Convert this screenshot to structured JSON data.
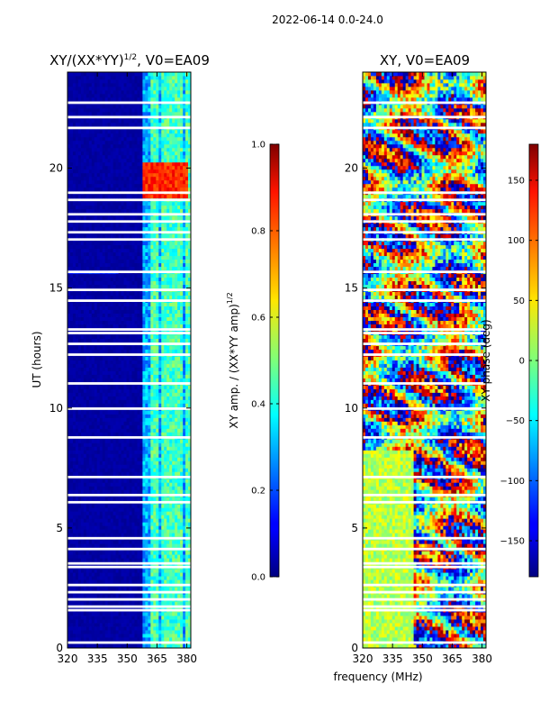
{
  "suptitle": "2022-06-14 0.0-24.0",
  "colors": {
    "background": "#ffffff",
    "waterfall_deep": "#00007f",
    "flag_gap": "#ffffff"
  },
  "chart_data": [
    {
      "type": "heatmap",
      "title": "XY/(XX*YY)^1/2, V0=EA09",
      "title_main": "XY/(XX*YY)",
      "title_sup": "1/2",
      "title_rest": ", V0=EA09",
      "xlabel": "",
      "ylabel": "UT (hours)",
      "xlim": [
        320,
        382
      ],
      "ylim": [
        0,
        24
      ],
      "xticks": [
        320,
        335,
        350,
        365,
        380
      ],
      "xtick_labels": [
        "320",
        "335",
        "350",
        "365",
        "380"
      ],
      "yticks": [
        0,
        5,
        10,
        15,
        20
      ],
      "ytick_labels": [
        "0",
        "5",
        "10",
        "15",
        "20"
      ],
      "colormap": "jet",
      "description_of_values": "mostly near 0 (dark blue); higher values (0.2-0.5) in 358-382 MHz; hot spot ~0.8-0.9 near 19-20 h, 358-380 MHz",
      "colorbar": {
        "label_main": "XY amp. / (XX*YY amp)",
        "label_sup": "1/2",
        "range": [
          0.0,
          1.0
        ],
        "ticks": [
          0.0,
          0.2,
          0.4,
          0.6,
          0.8,
          1.0
        ],
        "tick_labels": [
          "0.0",
          "0.2",
          "0.4",
          "0.6",
          "0.8",
          "1.0"
        ]
      }
    },
    {
      "type": "heatmap",
      "title": "XY, V0=EA09",
      "xlabel": "frequency (MHz)",
      "ylabel": "",
      "xlim": [
        320,
        382
      ],
      "ylim": [
        0,
        24
      ],
      "xticks": [
        320,
        335,
        350,
        365,
        380
      ],
      "xtick_labels": [
        "320",
        "335",
        "350",
        "365",
        "380"
      ],
      "yticks": [
        0,
        5,
        10,
        15,
        20
      ],
      "ytick_labels": [
        "0",
        "5",
        "10",
        "15",
        "20"
      ],
      "colormap": "jet",
      "description_of_values": "phase values spanning -180 to 180 deg, wrapping, noisy",
      "colorbar": {
        "label": "XY phase (deg)",
        "range": [
          -180,
          180
        ],
        "ticks": [
          -150,
          -100,
          -50,
          0,
          50,
          100,
          150
        ],
        "tick_labels": [
          "−150",
          "−100",
          "−50",
          "0",
          "50",
          "100",
          "150"
        ]
      }
    }
  ],
  "flagged_rows_hours": [
    0.28,
    0.45,
    1.55,
    1.75,
    2.05,
    2.35,
    2.6,
    2.85,
    3.35,
    3.55,
    3.9,
    4.15,
    4.35,
    4.6,
    4.95,
    5.25,
    5.7,
    6.05,
    6.35,
    7.1,
    7.35,
    8.75,
    8.85,
    10.0,
    10.2,
    11.0,
    11.7,
    12.2,
    12.65,
    13.1,
    13.3,
    13.95,
    14.5,
    14.95,
    15.3,
    15.65,
    16.5,
    17.0,
    17.3,
    17.75,
    18.1,
    18.45,
    18.7,
    19.0,
    19.35,
    19.65,
    21.15,
    21.45,
    21.7,
    22.1,
    22.7,
    22.8,
    23.4
  ]
}
